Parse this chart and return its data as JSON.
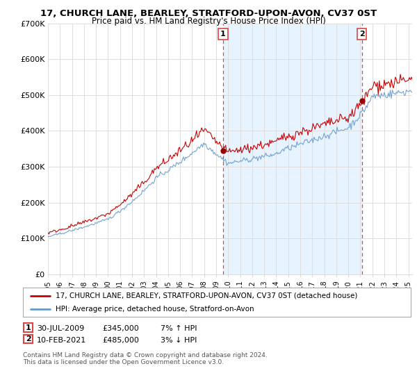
{
  "title": "17, CHURCH LANE, BEARLEY, STRATFORD-UPON-AVON, CV37 0ST",
  "subtitle": "Price paid vs. HM Land Registry's House Price Index (HPI)",
  "legend_line1": "17, CHURCH LANE, BEARLEY, STRATFORD-UPON-AVON, CV37 0ST (detached house)",
  "legend_line2": "HPI: Average price, detached house, Stratford-on-Avon",
  "footnote": "Contains HM Land Registry data © Crown copyright and database right 2024.\nThis data is licensed under the Open Government Licence v3.0.",
  "transaction1_date": "30-JUL-2009",
  "transaction1_price": "£345,000",
  "transaction1_hpi": "7% ↑ HPI",
  "transaction2_date": "10-FEB-2021",
  "transaction2_price": "£485,000",
  "transaction2_hpi": "3% ↓ HPI",
  "red_line_color": "#cc0000",
  "blue_line_color": "#6699cc",
  "vline_color": "#dd4444",
  "shade_color": "#ddeeff",
  "marker_color": "#990000",
  "ylim": [
    0,
    700000
  ],
  "yticks": [
    0,
    100000,
    200000,
    300000,
    400000,
    500000,
    600000,
    700000
  ],
  "ytick_labels": [
    "£0",
    "£100K",
    "£200K",
    "£300K",
    "£400K",
    "£500K",
    "£600K",
    "£700K"
  ],
  "background_color": "#ffffff",
  "grid_color": "#dddddd",
  "transaction1_x": 2009.58,
  "transaction2_x": 2021.12,
  "transaction1_y": 345000,
  "transaction2_y": 485000,
  "xmin": 1995.0,
  "xmax": 2025.3
}
